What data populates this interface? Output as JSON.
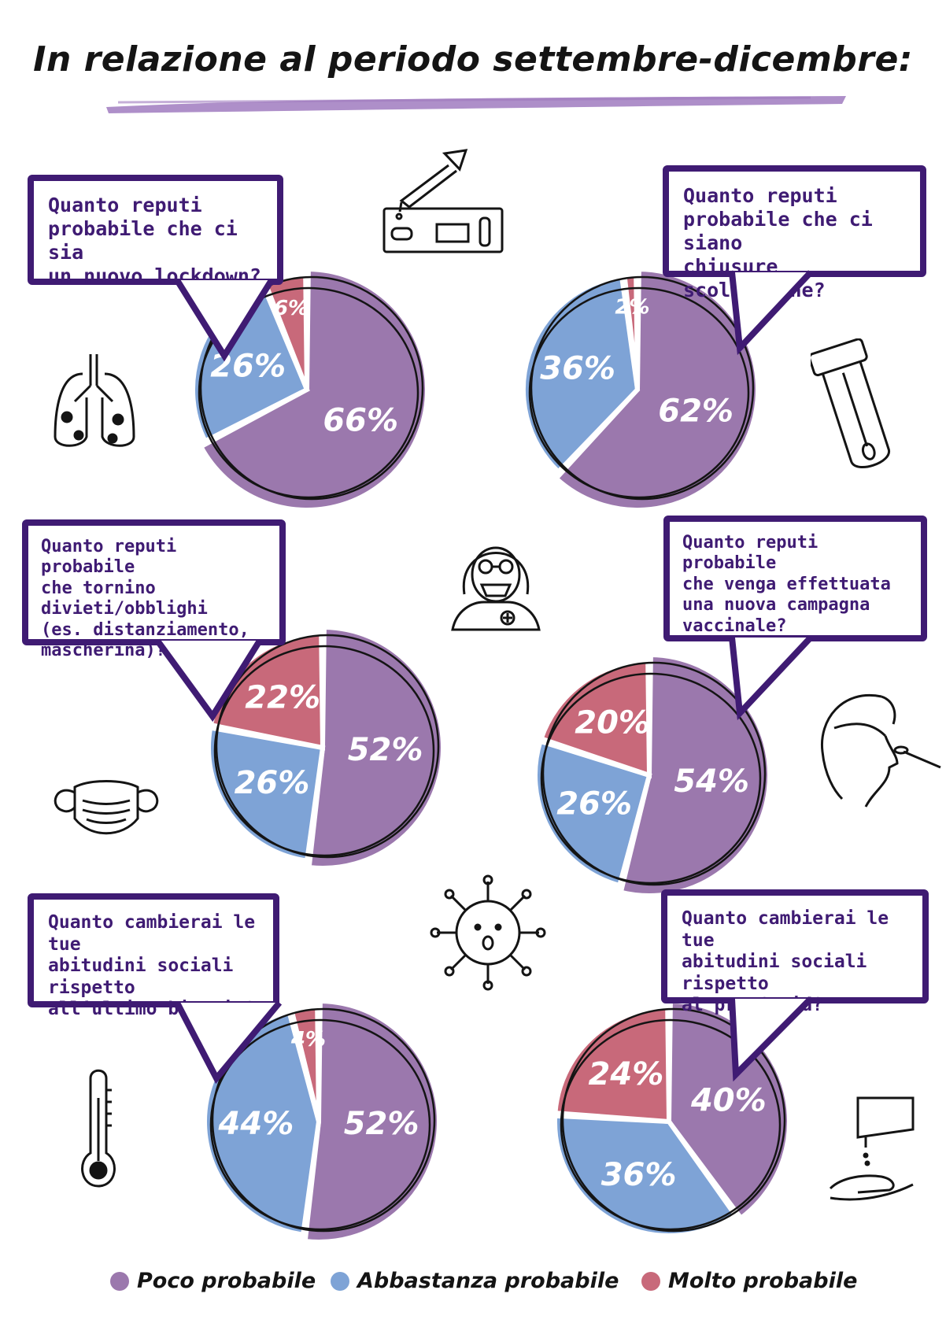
{
  "page": {
    "title": "In relazione al periodo settembre-dicembre:",
    "accent_color": "#a07bbf"
  },
  "legend": {
    "items": [
      {
        "label": "Poco probabile",
        "color": "#9b78ad"
      },
      {
        "label": "Abbastanza probabile",
        "color": "#7ea3d6"
      },
      {
        "label": "Molto probabile",
        "color": "#c8697a"
      }
    ]
  },
  "icons": [
    "rapid-test-icon",
    "lungs-icon",
    "test-tube-swab-icon",
    "hazmat-doctor-icon",
    "face-mask-icon",
    "nasal-swab-icon",
    "virus-icon",
    "thermometer-icon",
    "sanitizer-dispenser-icon"
  ],
  "chart_data": [
    {
      "type": "pie",
      "title": "Quanto reputi probabile che ci sia un nuovo lockdown?",
      "title_lines": [
        "Quanto reputi",
        "probabile che ci sia",
        "un nuovo lockdown?"
      ],
      "categories": [
        "Poco probabile",
        "Abbastanza probabile",
        "Molto probabile"
      ],
      "values": [
        66,
        26,
        6
      ],
      "labels": [
        "66%",
        "26%",
        "6%"
      ]
    },
    {
      "type": "pie",
      "title": "Quanto reputi probabile che ci siano chiusure scolastiche?",
      "title_lines": [
        "Quanto reputi",
        "probabile che ci siano",
        "chiusure scolastiche?"
      ],
      "categories": [
        "Poco probabile",
        "Abbastanza probabile",
        "Molto probabile"
      ],
      "values": [
        62,
        36,
        2
      ],
      "labels": [
        "62%",
        "36%",
        "2%"
      ]
    },
    {
      "type": "pie",
      "title": "Quanto reputi probabile che tornino divieti/obblighi (es. distanziamento, mascherina)?",
      "title_lines": [
        "Quanto reputi probabile",
        "che tornino divieti/obblighi",
        "(es. distanziamento,",
        "mascherina)?"
      ],
      "categories": [
        "Poco probabile",
        "Abbastanza probabile",
        "Molto probabile"
      ],
      "values": [
        52,
        26,
        22
      ],
      "labels": [
        "52%",
        "26%",
        "22%"
      ]
    },
    {
      "type": "pie",
      "title": "Quanto reputi probabile che venga effettuata una nuova campagna vaccinale?",
      "title_lines": [
        "Quanto reputi probabile",
        "che venga effettuata",
        "una nuova campagna",
        "vaccinale?"
      ],
      "categories": [
        "Poco probabile",
        "Abbastanza probabile",
        "Molto probabile"
      ],
      "values": [
        54,
        26,
        20
      ],
      "labels": [
        "54%",
        "26%",
        "20%"
      ]
    },
    {
      "type": "pie",
      "title": "Quanto cambierai le tue abitudini sociali rispetto all'ultimo biennio?",
      "title_lines": [
        "Quanto cambierai le tue",
        "abitudini sociali rispetto",
        "all’ultimo biennio?"
      ],
      "categories": [
        "Poco probabile",
        "Abbastanza probabile",
        "Molto probabile"
      ],
      "values": [
        52,
        44,
        4
      ],
      "labels": [
        "52%",
        "44%",
        "4%"
      ]
    },
    {
      "type": "pie",
      "title": "Quanto cambierai le tue abitudini sociali rispetto al pre-Covid?",
      "title_lines": [
        "Quanto cambierai le tue",
        "abitudini sociali rispetto",
        "al pre-Covid?"
      ],
      "categories": [
        "Poco probabile",
        "Abbastanza probabile",
        "Molto probabile"
      ],
      "values": [
        40,
        36,
        24
      ],
      "labels": [
        "40%",
        "36%",
        "24%"
      ]
    }
  ]
}
